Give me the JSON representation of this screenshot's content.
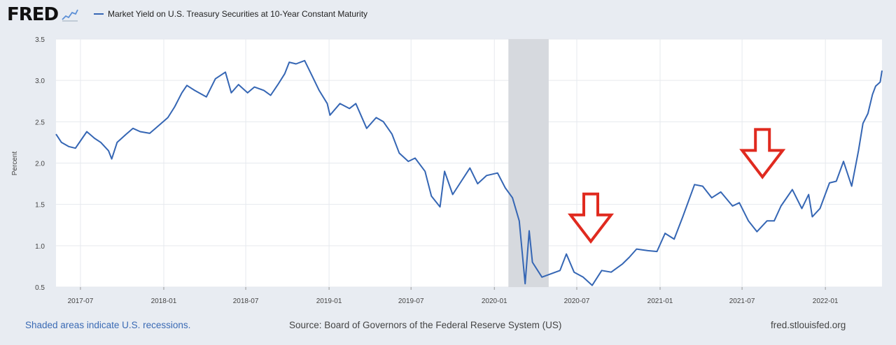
{
  "header": {
    "logo_text": "FRED",
    "legend_label": "Market Yield on U.S. Treasury Securities at 10-Year Constant Maturity",
    "series_color": "#3566b4"
  },
  "footer": {
    "recession_note": "Shaded areas indicate U.S. recessions.",
    "source": "Source: Board of Governors of the Federal Reserve System (US)",
    "site": "fred.stlouisfed.org"
  },
  "chart_data": {
    "type": "line",
    "title": "",
    "xlabel": "",
    "ylabel": "Percent",
    "ylim": [
      0.5,
      3.5
    ],
    "yticks": [
      "0.5",
      "1.0",
      "1.5",
      "2.0",
      "2.5",
      "3.0",
      "3.5"
    ],
    "xticks": [
      "2017-07",
      "2018-01",
      "2018-07",
      "2019-01",
      "2019-07",
      "2020-01",
      "2020-07",
      "2021-01",
      "2021-07",
      "2022-01"
    ],
    "xlim": [
      "2017-05-08",
      "2022-05-06"
    ],
    "grid": true,
    "recession_shading": [
      {
        "start": "2020-02-01",
        "end": "2020-04-30"
      }
    ],
    "annotations": [
      {
        "type": "down-arrow",
        "x": "2020-08-01",
        "color": "#e02a1f"
      },
      {
        "type": "down-arrow",
        "x": "2021-08-15",
        "color": "#e02a1f"
      }
    ],
    "series": [
      {
        "name": "Market Yield on U.S. Treasury Securities at 10-Year Constant Maturity",
        "color": "#3566b4",
        "points": [
          [
            "2017-05-08",
            2.35
          ],
          [
            "2017-05-20",
            2.25
          ],
          [
            "2017-06-05",
            2.2
          ],
          [
            "2017-06-20",
            2.18
          ],
          [
            "2017-07-05",
            2.3
          ],
          [
            "2017-07-15",
            2.38
          ],
          [
            "2017-08-01",
            2.3
          ],
          [
            "2017-08-15",
            2.25
          ],
          [
            "2017-09-01",
            2.15
          ],
          [
            "2017-09-08",
            2.05
          ],
          [
            "2017-09-20",
            2.25
          ],
          [
            "2017-10-10",
            2.35
          ],
          [
            "2017-10-25",
            2.42
          ],
          [
            "2017-11-10",
            2.38
          ],
          [
            "2017-12-01",
            2.36
          ],
          [
            "2017-12-20",
            2.45
          ],
          [
            "2018-01-10",
            2.55
          ],
          [
            "2018-01-25",
            2.68
          ],
          [
            "2018-02-10",
            2.85
          ],
          [
            "2018-02-21",
            2.94
          ],
          [
            "2018-03-10",
            2.88
          ],
          [
            "2018-04-05",
            2.8
          ],
          [
            "2018-04-25",
            3.02
          ],
          [
            "2018-05-17",
            3.1
          ],
          [
            "2018-05-30",
            2.85
          ],
          [
            "2018-06-15",
            2.95
          ],
          [
            "2018-07-05",
            2.85
          ],
          [
            "2018-07-20",
            2.92
          ],
          [
            "2018-08-10",
            2.88
          ],
          [
            "2018-08-25",
            2.82
          ],
          [
            "2018-09-10",
            2.95
          ],
          [
            "2018-09-25",
            3.08
          ],
          [
            "2018-10-05",
            3.22
          ],
          [
            "2018-10-20",
            3.2
          ],
          [
            "2018-11-08",
            3.24
          ],
          [
            "2018-11-25",
            3.05
          ],
          [
            "2018-12-10",
            2.88
          ],
          [
            "2018-12-28",
            2.72
          ],
          [
            "2019-01-03",
            2.58
          ],
          [
            "2019-01-25",
            2.72
          ],
          [
            "2019-02-15",
            2.66
          ],
          [
            "2019-03-01",
            2.72
          ],
          [
            "2019-03-25",
            2.42
          ],
          [
            "2019-04-15",
            2.55
          ],
          [
            "2019-05-01",
            2.5
          ],
          [
            "2019-05-20",
            2.35
          ],
          [
            "2019-06-05",
            2.12
          ],
          [
            "2019-06-25",
            2.02
          ],
          [
            "2019-07-10",
            2.06
          ],
          [
            "2019-08-01",
            1.9
          ],
          [
            "2019-08-15",
            1.6
          ],
          [
            "2019-09-03",
            1.47
          ],
          [
            "2019-09-13",
            1.9
          ],
          [
            "2019-10-01",
            1.62
          ],
          [
            "2019-10-20",
            1.78
          ],
          [
            "2019-11-08",
            1.94
          ],
          [
            "2019-11-25",
            1.75
          ],
          [
            "2019-12-15",
            1.85
          ],
          [
            "2020-01-08",
            1.88
          ],
          [
            "2020-01-25",
            1.7
          ],
          [
            "2020-02-10",
            1.58
          ],
          [
            "2020-02-25",
            1.3
          ],
          [
            "2020-03-09",
            0.54
          ],
          [
            "2020-03-18",
            1.18
          ],
          [
            "2020-03-25",
            0.8
          ],
          [
            "2020-04-15",
            0.62
          ],
          [
            "2020-05-05",
            0.66
          ],
          [
            "2020-05-25",
            0.7
          ],
          [
            "2020-06-08",
            0.9
          ],
          [
            "2020-06-25",
            0.68
          ],
          [
            "2020-07-15",
            0.62
          ],
          [
            "2020-08-04",
            0.52
          ],
          [
            "2020-08-25",
            0.7
          ],
          [
            "2020-09-15",
            0.68
          ],
          [
            "2020-10-10",
            0.78
          ],
          [
            "2020-10-25",
            0.86
          ],
          [
            "2020-11-10",
            0.96
          ],
          [
            "2020-12-05",
            0.94
          ],
          [
            "2020-12-25",
            0.93
          ],
          [
            "2021-01-12",
            1.15
          ],
          [
            "2021-02-01",
            1.08
          ],
          [
            "2021-02-20",
            1.35
          ],
          [
            "2021-03-18",
            1.74
          ],
          [
            "2021-04-05",
            1.72
          ],
          [
            "2021-04-25",
            1.58
          ],
          [
            "2021-05-15",
            1.65
          ],
          [
            "2021-06-10",
            1.48
          ],
          [
            "2021-06-25",
            1.52
          ],
          [
            "2021-07-15",
            1.3
          ],
          [
            "2021-08-03",
            1.17
          ],
          [
            "2021-08-25",
            1.3
          ],
          [
            "2021-09-10",
            1.3
          ],
          [
            "2021-09-25",
            1.48
          ],
          [
            "2021-10-20",
            1.68
          ],
          [
            "2021-11-10",
            1.45
          ],
          [
            "2021-11-25",
            1.62
          ],
          [
            "2021-12-03",
            1.35
          ],
          [
            "2021-12-20",
            1.45
          ],
          [
            "2022-01-10",
            1.76
          ],
          [
            "2022-01-25",
            1.78
          ],
          [
            "2022-02-10",
            2.02
          ],
          [
            "2022-02-28",
            1.72
          ],
          [
            "2022-03-15",
            2.15
          ],
          [
            "2022-03-25",
            2.48
          ],
          [
            "2022-04-05",
            2.6
          ],
          [
            "2022-04-15",
            2.83
          ],
          [
            "2022-04-22",
            2.93
          ],
          [
            "2022-05-02",
            2.98
          ],
          [
            "2022-05-06",
            3.12
          ]
        ]
      }
    ]
  }
}
